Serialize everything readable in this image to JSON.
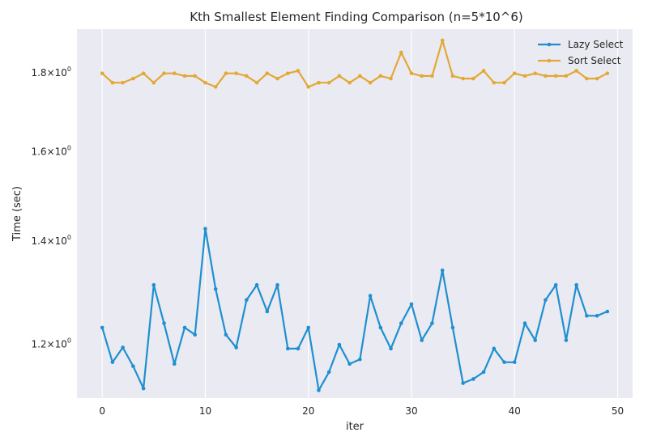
{
  "chart_data": {
    "type": "line",
    "title": "Kth Smallest Element Finding Comparison (n=5*10^6)",
    "xlabel": "iter",
    "ylabel": "Time (sec)",
    "xlim": [
      -2.45,
      51.45
    ],
    "ylim": [
      1.107,
      1.922
    ],
    "y_scale": "log",
    "x_ticks": [
      0,
      10,
      20,
      30,
      40,
      50
    ],
    "y_ticks": [
      {
        "value": 1.2,
        "mantissa": "1.2",
        "exponent": "0"
      },
      {
        "value": 1.4,
        "mantissa": "1.4",
        "exponent": "0"
      },
      {
        "value": 1.6,
        "mantissa": "1.6",
        "exponent": "0"
      },
      {
        "value": 1.8,
        "mantissa": "1.8",
        "exponent": "0"
      }
    ],
    "grid": true,
    "legend_position": "top-right",
    "background": "#eaeaf2",
    "series": [
      {
        "name": "Lazy Select",
        "color": "#1f8fd0",
        "values": [
          1.23,
          1.168,
          1.194,
          1.161,
          1.123,
          1.311,
          1.238,
          1.165,
          1.23,
          1.217,
          1.426,
          1.303,
          1.217,
          1.194,
          1.282,
          1.311,
          1.26,
          1.311,
          1.192,
          1.192,
          1.23,
          1.12,
          1.151,
          1.199,
          1.165,
          1.173,
          1.29,
          1.23,
          1.192,
          1.238,
          1.274,
          1.207,
          1.238,
          1.34,
          1.23,
          1.132,
          1.139,
          1.151,
          1.192,
          1.168,
          1.168,
          1.238,
          1.207,
          1.282,
          1.311,
          1.207,
          1.311,
          1.252,
          1.252,
          1.26
        ]
      },
      {
        "name": "Sort Select",
        "color": "#e3a835",
        "values": [
          1.799,
          1.774,
          1.774,
          1.785,
          1.799,
          1.774,
          1.799,
          1.799,
          1.792,
          1.792,
          1.774,
          1.763,
          1.799,
          1.799,
          1.792,
          1.774,
          1.799,
          1.785,
          1.799,
          1.806,
          1.763,
          1.774,
          1.774,
          1.792,
          1.774,
          1.792,
          1.774,
          1.792,
          1.785,
          1.856,
          1.799,
          1.792,
          1.792,
          1.89,
          1.792,
          1.785,
          1.785,
          1.806,
          1.774,
          1.774,
          1.799,
          1.792,
          1.799,
          1.792,
          1.792,
          1.792,
          1.806,
          1.785,
          1.785,
          1.799
        ]
      }
    ]
  }
}
